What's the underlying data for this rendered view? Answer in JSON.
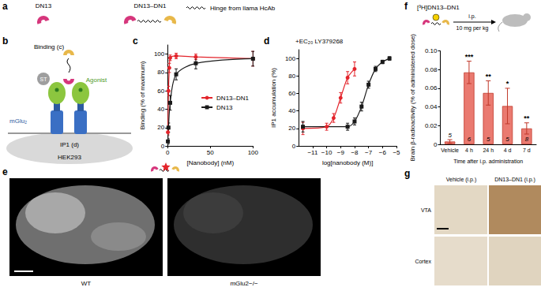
{
  "panel_labels": [
    "a",
    "b",
    "c",
    "d",
    "e",
    "f",
    "g"
  ],
  "a": {
    "items": [
      "DN13",
      "DN13–DN1",
      "Hinge from llama HcAb"
    ]
  },
  "b": {
    "binding": "Binding (c)",
    "tag": "ST",
    "agonist": "Agonist",
    "receptor": "mGlu₂",
    "readout": "IP1 (d)",
    "cell": "HEK293"
  },
  "chart_data": [
    {
      "type": "line",
      "xlabel": "[Nanobody] (nM)",
      "ylabel": "Binding (% of maximum)",
      "xlim": [
        0,
        100
      ],
      "xticks": [
        0,
        50,
        100
      ],
      "ylim": [
        0,
        110
      ],
      "yticks": [
        0,
        20,
        40,
        60,
        80,
        100
      ],
      "legend": "right",
      "series": [
        {
          "name": "DN13–DN1",
          "color": "#e3242b",
          "marker": "circle",
          "x": [
            0.3,
            1,
            2,
            3,
            10,
            33,
            100
          ],
          "values": [
            15,
            60,
            85,
            96,
            98,
            97,
            95
          ],
          "errors": [
            3,
            5,
            5,
            3,
            3,
            3,
            8
          ]
        },
        {
          "name": "DN13",
          "color": "#1a1a1a",
          "marker": "square",
          "x": [
            0.3,
            1,
            3,
            10,
            33,
            100
          ],
          "values": [
            5,
            20,
            47,
            78,
            90,
            95
          ],
          "errors": [
            3,
            5,
            8,
            6,
            6,
            8
          ]
        }
      ]
    },
    {
      "type": "line",
      "annotation": "+EC₂₀ LY379268",
      "xlabel": "log[nanobody (M)]",
      "ylabel": "IP1 accumulation (%)",
      "xlim": [
        -12,
        -5
      ],
      "xticks": [
        {
          "value": -11,
          "label": "−11"
        },
        {
          "value": -10,
          "label": "−10"
        },
        {
          "value": -9,
          "label": "−9"
        },
        {
          "value": -8,
          "label": "−8"
        },
        {
          "value": -7,
          "label": "−7"
        },
        {
          "value": -6,
          "label": "−6"
        },
        {
          "value": -5,
          "label": "−5"
        }
      ],
      "ylim": [
        0,
        110
      ],
      "yticks": [
        0,
        20,
        40,
        60,
        80,
        100
      ],
      "series": [
        {
          "name": "DN13–DN1",
          "color": "#e3242b",
          "marker": "circle",
          "x": [
            -11.7,
            -10,
            -9.5,
            -9,
            -8.5,
            -8
          ],
          "values": [
            20,
            22,
            32,
            55,
            78,
            88
          ],
          "errors": [
            7,
            4,
            5,
            6,
            7,
            8
          ]
        },
        {
          "name": "DN13",
          "color": "#1a1a1a",
          "marker": "square",
          "x": [
            -11.7,
            -8.5,
            -8,
            -7.5,
            -7,
            -6.5,
            -6,
            -5.5
          ],
          "values": [
            22,
            22,
            28,
            45,
            70,
            88,
            96,
            100
          ],
          "errors": [
            6,
            4,
            4,
            5,
            4,
            3,
            2,
            2
          ]
        }
      ]
    },
    {
      "type": "bar",
      "title": "[³H]DN13–DN1",
      "annotation": "i.p.",
      "subtitle": "10 mg per kg",
      "categories": [
        "Vehicle",
        "4 h",
        "24 h",
        "4 d",
        "7 d"
      ],
      "values": [
        0.003,
        0.077,
        0.055,
        0.041,
        0.017
      ],
      "errors": [
        0.002,
        0.012,
        0.013,
        0.019,
        0.006
      ],
      "n": [
        5,
        6,
        5,
        5,
        8
      ],
      "significance": [
        null,
        "***",
        "**",
        "*",
        "**"
      ],
      "color": "#ea7a70",
      "ylabel": "Brain β-radioactivity (% of administered dose)",
      "xlabel": "Time after i.p. administration",
      "ylim": [
        0,
        0.1
      ],
      "yticks": [
        0,
        0.02,
        0.04,
        0.06,
        0.08,
        {
          "value": 0.1,
          "label": "0.10"
        }
      ]
    }
  ],
  "e": {
    "labels": [
      "WT",
      "mGlu2−/−"
    ]
  },
  "g": {
    "columns": [
      "Vehicle (i.p.)",
      "DN13–DN1 (i.p.)"
    ],
    "rows": [
      "VTA",
      "Cortex"
    ]
  }
}
